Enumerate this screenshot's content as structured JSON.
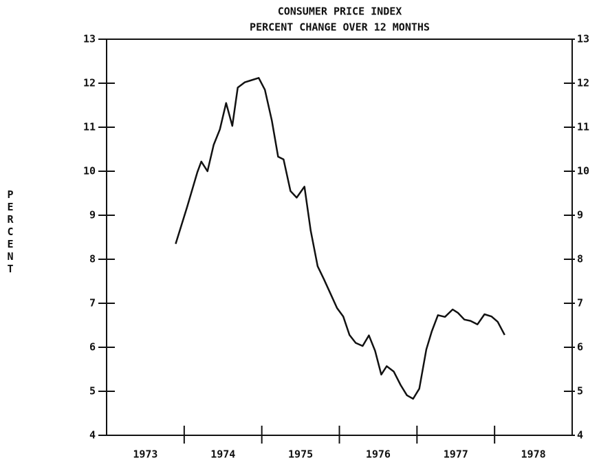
{
  "chart_data": {
    "type": "line",
    "title": "CONSUMER PRICE INDEX",
    "subtitle": "PERCENT CHANGE OVER 12 MONTHS",
    "y_label": "PERCENT",
    "categories": [
      "1973",
      "1974",
      "1975",
      "1976",
      "1977",
      "1978"
    ],
    "xlim": [
      1973,
      1979
    ],
    "ylim": [
      4,
      13
    ],
    "yticks": [
      4,
      5,
      6,
      7,
      8,
      9,
      10,
      11,
      12,
      13
    ],
    "color": "#111111",
    "x": [
      1973.89,
      1974.04,
      1974.17,
      1974.22,
      1974.3,
      1974.38,
      1974.46,
      1974.54,
      1974.62,
      1974.69,
      1974.78,
      1974.87,
      1974.96,
      1975.04,
      1975.13,
      1975.21,
      1975.28,
      1975.37,
      1975.45,
      1975.55,
      1975.63,
      1975.72,
      1975.8,
      1975.89,
      1975.97,
      1976.05,
      1976.13,
      1976.21,
      1976.3,
      1976.38,
      1976.46,
      1976.54,
      1976.61,
      1976.7,
      1976.79,
      1976.87,
      1976.95,
      1977.03,
      1977.12,
      1977.19,
      1977.27,
      1977.36,
      1977.46,
      1977.53,
      1977.61,
      1977.69,
      1977.78,
      1977.87,
      1977.96,
      1978.04,
      1978.13
    ],
    "values": [
      8.35,
      9.2,
      9.98,
      10.22,
      10.0,
      10.6,
      10.95,
      11.55,
      11.03,
      11.9,
      12.02,
      12.07,
      12.12,
      11.85,
      11.15,
      10.33,
      10.27,
      9.55,
      9.4,
      9.65,
      8.65,
      7.84,
      7.55,
      7.2,
      6.89,
      6.7,
      6.28,
      6.1,
      6.03,
      6.27,
      5.92,
      5.38,
      5.57,
      5.45,
      5.14,
      4.91,
      4.83,
      5.06,
      5.95,
      6.36,
      6.73,
      6.69,
      6.86,
      6.78,
      6.63,
      6.6,
      6.52,
      6.75,
      6.7,
      6.58,
      6.28
    ]
  }
}
